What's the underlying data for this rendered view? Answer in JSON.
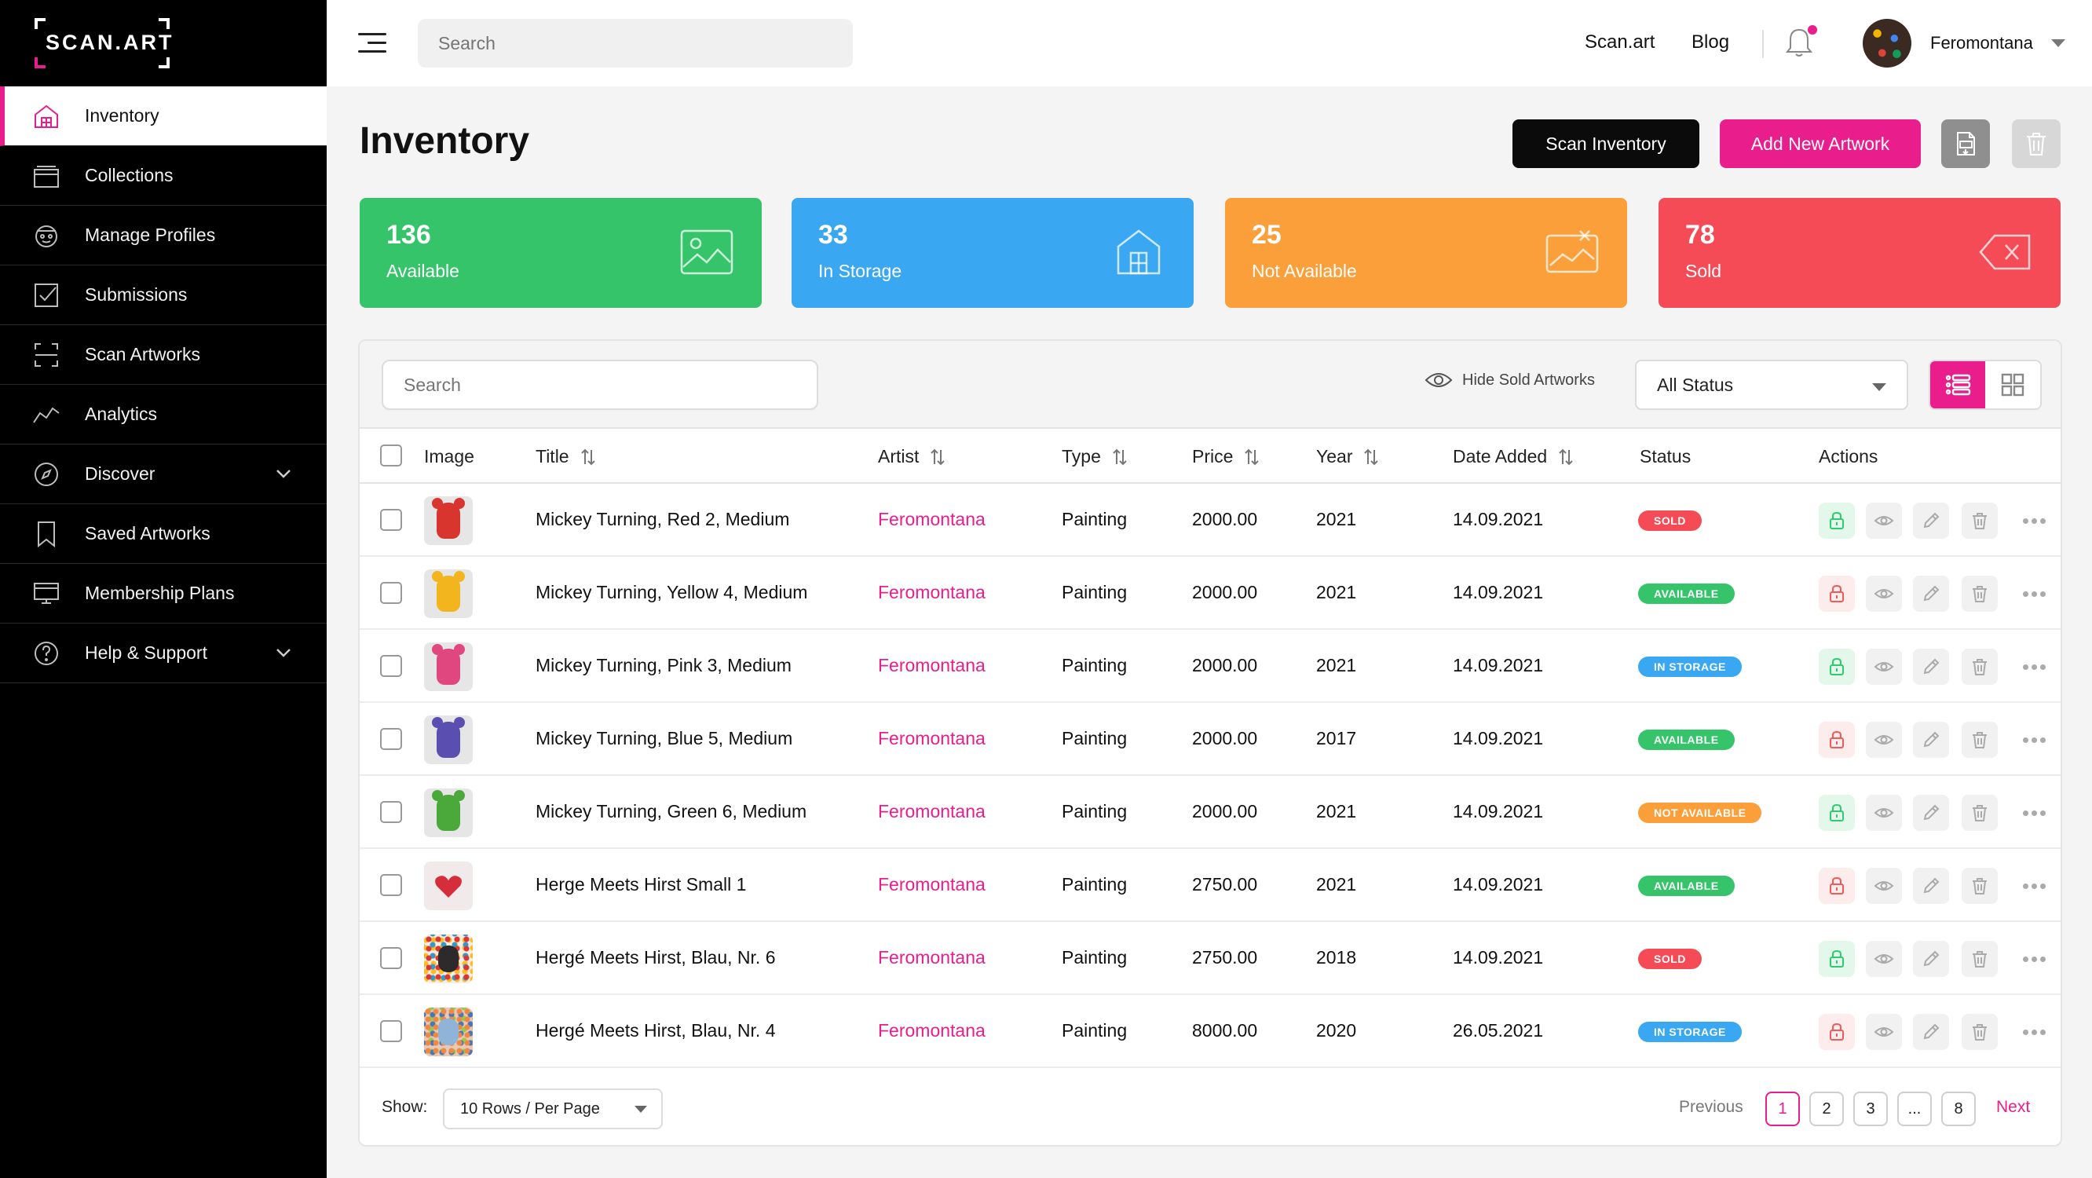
{
  "brand": {
    "logo_text": "SCAN.ART"
  },
  "colors": {
    "accent": "#e91e8c",
    "green": "#36c46b",
    "blue": "#3aa7f2",
    "orange": "#fb9f3b",
    "red": "#f44b57"
  },
  "sidebar": {
    "items": [
      {
        "label": "Inventory",
        "icon": "home-icon",
        "active": true
      },
      {
        "label": "Collections",
        "icon": "folder-icon"
      },
      {
        "label": "Manage Profiles",
        "icon": "profile-icon"
      },
      {
        "label": "Submissions",
        "icon": "checkbox-icon"
      },
      {
        "label": "Scan Artworks",
        "icon": "scan-icon"
      },
      {
        "label": "Analytics",
        "icon": "chart-icon"
      },
      {
        "label": "Discover",
        "icon": "compass-icon",
        "expandable": true
      },
      {
        "label": "Saved Artworks",
        "icon": "bookmark-icon"
      },
      {
        "label": "Membership Plans",
        "icon": "card-icon"
      },
      {
        "label": "Help & Support",
        "icon": "question-icon",
        "expandable": true
      }
    ]
  },
  "topbar": {
    "search_placeholder": "Search",
    "links": [
      "Scan.art",
      "Blog"
    ],
    "user_name": "Feromontana"
  },
  "page": {
    "title": "Inventory",
    "scan_button": "Scan Inventory",
    "add_button": "Add New Artwork"
  },
  "stats": [
    {
      "value": "136",
      "label": "Available",
      "color": "#36c46b",
      "icon": "image-icon"
    },
    {
      "value": "33",
      "label": "In Storage",
      "color": "#3aa7f2",
      "icon": "storage-icon"
    },
    {
      "value": "25",
      "label": "Not Available",
      "color": "#fb9f3b",
      "icon": "no-image-icon"
    },
    {
      "value": "78",
      "label": "Sold",
      "color": "#f44b57",
      "icon": "delete-tag-icon"
    }
  ],
  "table": {
    "search_placeholder": "Search",
    "hide_sold_label": "Hide Sold Artworks",
    "status_filter": "All Status",
    "columns": [
      "Image",
      "Title",
      "Artist",
      "Type",
      "Price",
      "Year",
      "Date Added",
      "Status",
      "Actions"
    ],
    "rows": [
      {
        "title": "Mickey Turning, Red 2, Medium",
        "artist": "Feromontana",
        "type": "Painting",
        "price": "2000.00",
        "year": "2021",
        "date": "14.09.2021",
        "status": "SOLD",
        "thumb": "#d8352f",
        "lock": "green"
      },
      {
        "title": "Mickey Turning, Yellow 4, Medium",
        "artist": "Feromontana",
        "type": "Painting",
        "price": "2000.00",
        "year": "2021",
        "date": "14.09.2021",
        "status": "AVAILABLE",
        "thumb": "#f2b51e",
        "lock": "red"
      },
      {
        "title": "Mickey Turning, Pink 3, Medium",
        "artist": "Feromontana",
        "type": "Painting",
        "price": "2000.00",
        "year": "2021",
        "date": "14.09.2021",
        "status": "IN STORAGE",
        "thumb": "#e0477f",
        "lock": "green"
      },
      {
        "title": "Mickey Turning, Blue 5, Medium",
        "artist": "Feromontana",
        "type": "Painting",
        "price": "2000.00",
        "year": "2017",
        "date": "14.09.2021",
        "status": "AVAILABLE",
        "thumb": "#5a4fb0",
        "lock": "red"
      },
      {
        "title": "Mickey Turning, Green 6, Medium",
        "artist": "Feromontana",
        "type": "Painting",
        "price": "2000.00",
        "year": "2021",
        "date": "14.09.2021",
        "status": "NOT AVAILABLE",
        "thumb": "#4ba83a",
        "lock": "green"
      },
      {
        "title": "Herge Meets Hirst Small 1",
        "artist": "Feromontana",
        "type": "Painting",
        "price": "2750.00",
        "year": "2021",
        "date": "14.09.2021",
        "status": "AVAILABLE",
        "thumb": "heart",
        "lock": "red"
      },
      {
        "title": "Hergé Meets Hirst, Blau, Nr. 6",
        "artist": "Feromontana",
        "type": "Painting",
        "price": "2750.00",
        "year": "2018",
        "date": "14.09.2021",
        "status": "SOLD",
        "thumb": "dots",
        "lock": "green"
      },
      {
        "title": "Hergé Meets Hirst, Blau, Nr. 4",
        "artist": "Feromontana",
        "type": "Painting",
        "price": "8000.00",
        "year": "2020",
        "date": "26.05.2021",
        "status": "IN STORAGE",
        "thumb": "dots2",
        "lock": "red"
      }
    ],
    "status_colors": {
      "SOLD": "#f44b57",
      "AVAILABLE": "#36c46b",
      "IN STORAGE": "#3aa7f2",
      "NOT AVAILABLE": "#fb9f3b"
    }
  },
  "footer": {
    "show_label": "Show:",
    "rows_per_page": "10 Rows / Per Page",
    "previous": "Previous",
    "pages": [
      "1",
      "2",
      "3",
      "...",
      "8"
    ],
    "current_page": "1",
    "next": "Next"
  }
}
